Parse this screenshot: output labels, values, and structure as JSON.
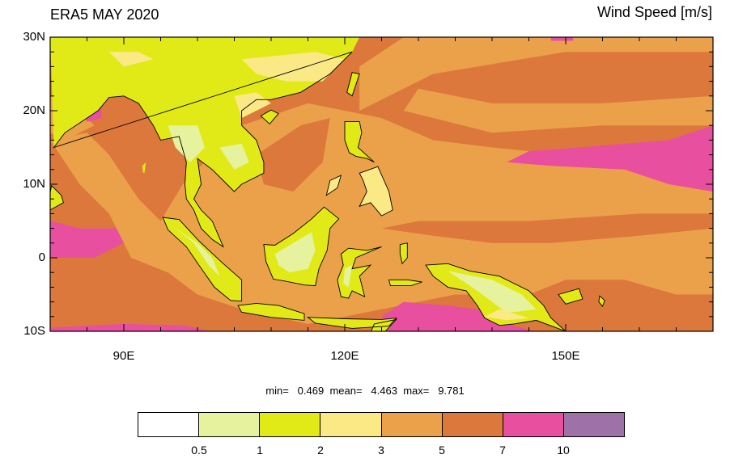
{
  "title": "ERA5 MAY 2020",
  "variable": "Wind Speed [m/s]",
  "stats": {
    "min_label": "min=",
    "min": "0.469",
    "mean_label": "mean=",
    "mean": "4.463",
    "max_label": "max=",
    "max": "9.781"
  },
  "lat_ticks": [
    {
      "value": 30,
      "label": "30N"
    },
    {
      "value": 20,
      "label": "20N"
    },
    {
      "value": 10,
      "label": "10N"
    },
    {
      "value": 0,
      "label": "0"
    },
    {
      "value": -10,
      "label": "10S"
    }
  ],
  "lon_ticks": [
    {
      "value": 90,
      "label": "90E"
    },
    {
      "value": 120,
      "label": "120E"
    },
    {
      "value": 150,
      "label": "150E"
    }
  ],
  "extent": {
    "lon_min": 80,
    "lon_max": 170,
    "lat_min": -10,
    "lat_max": 30
  },
  "colorbar": {
    "levels": [
      "0.5",
      "1",
      "2",
      "3",
      "5",
      "7",
      "10"
    ],
    "colors": [
      "#ffffff",
      "#e6f29e",
      "#e1ea16",
      "#fbe985",
      "#eba14a",
      "#dc783c",
      "#e84f9f",
      "#9e72a8"
    ]
  }
}
